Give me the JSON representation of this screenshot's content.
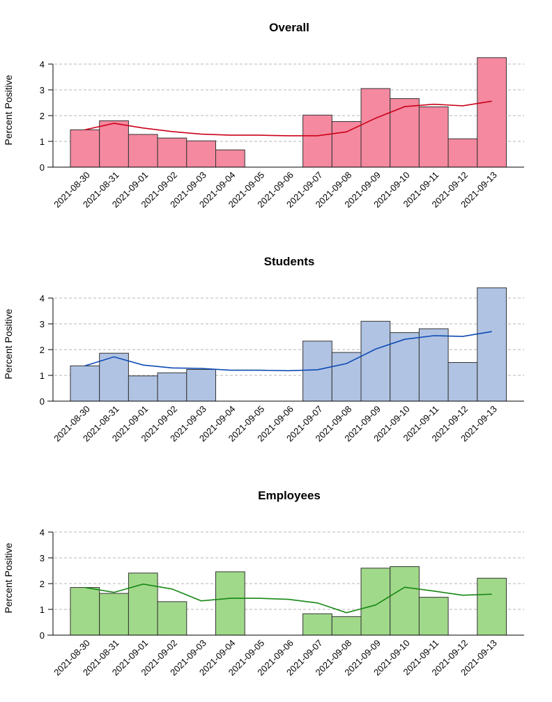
{
  "chart_data": [
    {
      "type": "bar",
      "title": "Overall",
      "ylabel": "Percent Positive",
      "xlabel": "",
      "ylim": [
        0,
        4.3
      ],
      "yticks": [
        0,
        1,
        2,
        3,
        4
      ],
      "grid": true,
      "categories": [
        "2021-08-30",
        "2021-08-31",
        "2021-09-01",
        "2021-09-02",
        "2021-09-03",
        "2021-09-04",
        "2021-09-05",
        "2021-09-06",
        "2021-09-07",
        "2021-09-08",
        "2021-09-09",
        "2021-09-10",
        "2021-09-11",
        "2021-09-12",
        "2021-09-13"
      ],
      "values": [
        1.45,
        1.8,
        1.27,
        1.13,
        1.02,
        0.67,
        0,
        0,
        2.02,
        1.77,
        3.05,
        2.66,
        2.34,
        1.1,
        4.25
      ],
      "trend": [
        1.45,
        1.7,
        1.52,
        1.38,
        1.28,
        1.24,
        1.24,
        1.22,
        1.22,
        1.37,
        1.9,
        2.35,
        2.44,
        2.38,
        2.56
      ],
      "bar_color": "#f4899f",
      "line_color": "#cc0018"
    },
    {
      "type": "bar",
      "title": "Students",
      "ylabel": "Percent Positive",
      "xlabel": "",
      "ylim": [
        0,
        4.3
      ],
      "yticks": [
        0,
        1,
        2,
        3,
        4
      ],
      "grid": true,
      "categories": [
        "2021-08-30",
        "2021-08-31",
        "2021-09-01",
        "2021-09-02",
        "2021-09-03",
        "2021-09-04",
        "2021-09-05",
        "2021-09-06",
        "2021-09-07",
        "2021-09-08",
        "2021-09-09",
        "2021-09-10",
        "2021-09-11",
        "2021-09-12",
        "2021-09-13"
      ],
      "values": [
        1.37,
        1.86,
        0.98,
        1.1,
        1.23,
        0,
        0,
        0,
        2.33,
        1.89,
        3.1,
        2.66,
        2.81,
        1.5,
        4.4
      ],
      "trend": [
        1.37,
        1.72,
        1.4,
        1.29,
        1.27,
        1.2,
        1.2,
        1.18,
        1.22,
        1.46,
        2.02,
        2.4,
        2.54,
        2.51,
        2.7
      ],
      "bar_color": "#b0c3e3",
      "line_color": "#0c4ab4"
    },
    {
      "type": "bar",
      "title": "Employees",
      "ylabel": "Percent Positive",
      "xlabel": "",
      "ylim": [
        0,
        4.3
      ],
      "yticks": [
        0,
        1,
        2,
        3,
        4
      ],
      "grid": true,
      "categories": [
        "2021-08-30",
        "2021-08-31",
        "2021-09-01",
        "2021-09-02",
        "2021-09-03",
        "2021-09-04",
        "2021-09-05",
        "2021-09-06",
        "2021-09-07",
        "2021-09-08",
        "2021-09-09",
        "2021-09-10",
        "2021-09-11",
        "2021-09-12",
        "2021-09-13"
      ],
      "values": [
        1.85,
        1.62,
        2.41,
        1.3,
        0,
        2.46,
        0,
        0,
        0.83,
        0.72,
        2.6,
        2.66,
        1.47,
        0,
        2.21
      ],
      "trend": [
        1.85,
        1.66,
        1.98,
        1.79,
        1.33,
        1.43,
        1.43,
        1.39,
        1.25,
        0.87,
        1.17,
        1.86,
        1.71,
        1.55,
        1.59
      ],
      "bar_color": "#a1d98a",
      "line_color": "#168714"
    }
  ]
}
